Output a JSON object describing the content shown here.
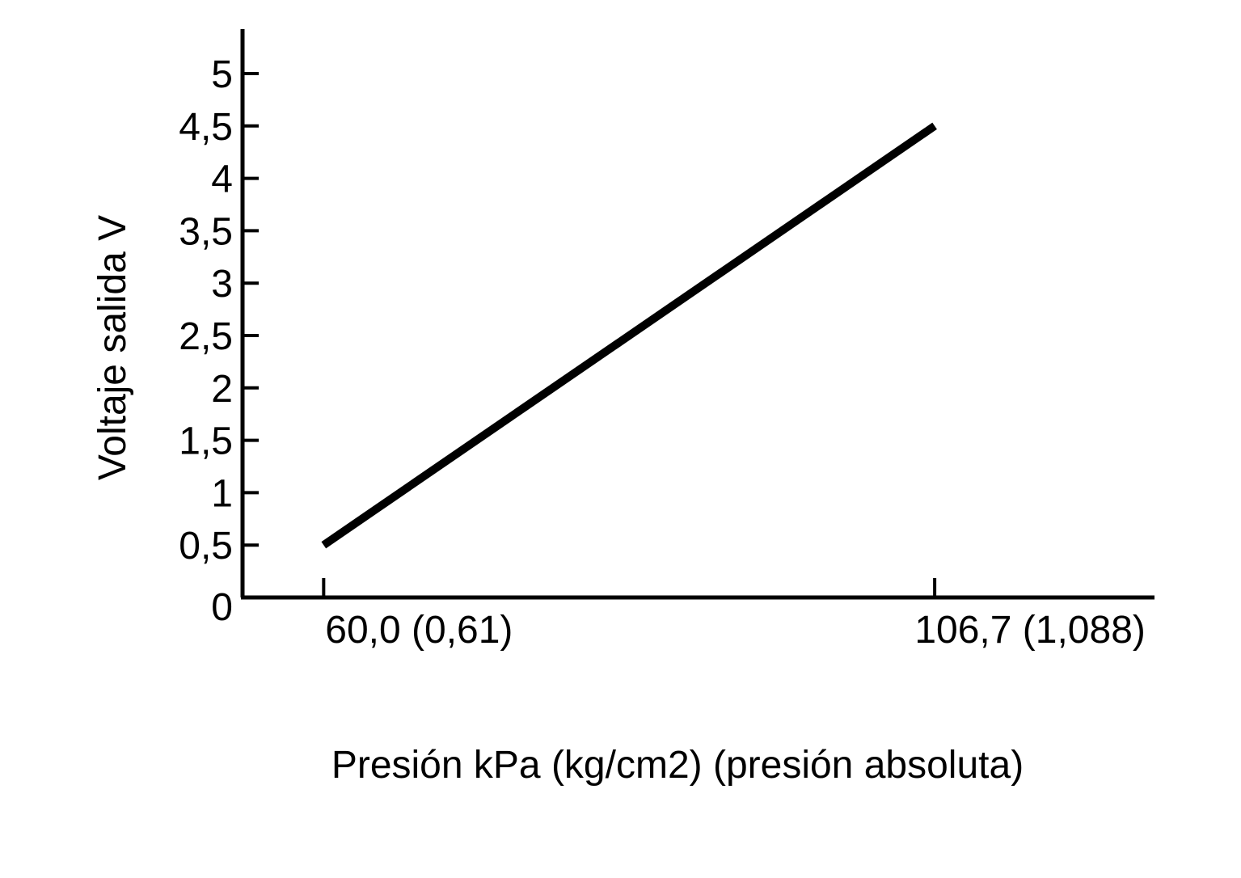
{
  "chart_data": {
    "type": "line",
    "title": "",
    "xlabel": "Presión kPa (kg/cm2) (presión absoluta)",
    "ylabel": "Voltaje salida V",
    "ylim": [
      0,
      5.4
    ],
    "yticks": [
      {
        "value": 0,
        "label": "0"
      },
      {
        "value": 0.5,
        "label": "0,5"
      },
      {
        "value": 1,
        "label": "1"
      },
      {
        "value": 1.5,
        "label": "1,5"
      },
      {
        "value": 2,
        "label": "2"
      },
      {
        "value": 2.5,
        "label": "2,5"
      },
      {
        "value": 3,
        "label": "3"
      },
      {
        "value": 3.5,
        "label": "3,5"
      },
      {
        "value": 4,
        "label": "4"
      },
      {
        "value": 4.5,
        "label": "4,5"
      },
      {
        "value": 5,
        "label": "5"
      }
    ],
    "xticks": [
      {
        "value": 60.0,
        "label": "60,0 (0,61)"
      },
      {
        "value": 106.7,
        "label": "106,7 (1,088)"
      }
    ],
    "xlim": [
      53.8,
      123.5
    ],
    "series": [
      {
        "x": [
          60.0,
          106.7
        ],
        "y": [
          0.5,
          4.5
        ]
      }
    ],
    "grid": false,
    "legend": "none"
  }
}
